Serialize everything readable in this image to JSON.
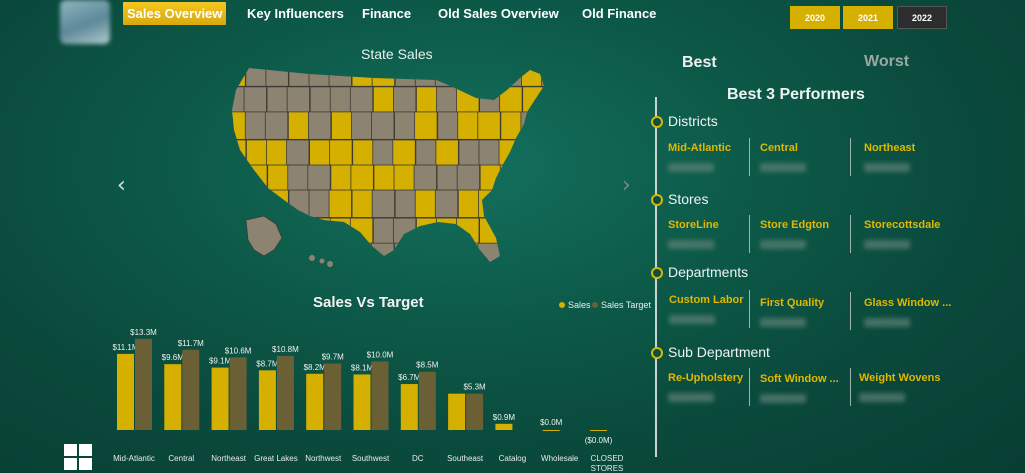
{
  "nav": {
    "tabs": [
      {
        "label": "Sales Overview",
        "active": true
      },
      {
        "label": "Key Influencers",
        "active": false
      },
      {
        "label": "Finance",
        "active": false
      },
      {
        "label": "Old Sales Overview",
        "active": false
      },
      {
        "label": "Old Finance",
        "active": false
      }
    ]
  },
  "years": [
    {
      "label": "2020",
      "selected": true
    },
    {
      "label": "2021",
      "selected": true
    },
    {
      "label": "2022",
      "selected": false
    }
  ],
  "map": {
    "title": "State Sales",
    "highlight_color": "#d6b000",
    "base_color": "#8c8370"
  },
  "chart": {
    "title": "Sales Vs Target",
    "legend": [
      {
        "label": "Sales",
        "color": "#d6b000"
      },
      {
        "label": "Sales Target",
        "color": "#6b5f36"
      }
    ]
  },
  "chart_data": {
    "type": "bar",
    "title": "Sales Vs Target",
    "categories": [
      "Mid-Atlantic",
      "Central",
      "Northeast",
      "Great Lakes",
      "Northwest",
      "Southwest",
      "DC",
      "Southeast",
      "Catalog",
      "Wholesale",
      "CLOSED STORES"
    ],
    "series": [
      {
        "name": "Sales",
        "values": [
          11.1,
          9.6,
          9.1,
          8.7,
          8.2,
          8.1,
          6.7,
          5.3,
          0.9,
          0.0,
          0.0
        ],
        "labels": [
          "$11.1M",
          "$9.6M",
          "$9.1M",
          "$8.7M",
          "$8.2M",
          "$8.1M",
          "$6.7M",
          "",
          "$0.9M",
          "$0.0M",
          "($0.0M)"
        ]
      },
      {
        "name": "Sales Target",
        "values": [
          13.3,
          11.7,
          10.6,
          10.8,
          9.7,
          10.0,
          8.5,
          5.3,
          0,
          0,
          0
        ],
        "labels": [
          "$13.3M",
          "$11.7M",
          "$10.6M",
          "$10.8M",
          "$9.7M",
          "$10.0M",
          "$8.5M",
          "$5.3M",
          "",
          "",
          ""
        ]
      }
    ],
    "ylim": [
      0,
      14
    ],
    "grid": false,
    "legend_position": "top-right"
  },
  "panel": {
    "best_label": "Best",
    "worst_label": "Worst",
    "title": "Best 3 Performers",
    "sections": [
      {
        "label": "Districts",
        "items": [
          "Mid-Atlantic",
          "Central",
          "Northeast"
        ]
      },
      {
        "label": "Stores",
        "items": [
          "StoreLine",
          "Store Edgton",
          "Storecottsdale"
        ]
      },
      {
        "label": "Departments",
        "items": [
          "Custom Labor",
          "First Quality",
          "Glass Window ..."
        ]
      },
      {
        "label": "Sub Department",
        "items": [
          "Re-Upholstery",
          "Soft Window ...",
          "Weight Wovens"
        ]
      }
    ]
  },
  "icons": {
    "prev": "chevron-left-icon",
    "next": "chevron-right-icon",
    "windows": "windows-icon"
  },
  "arrows": {
    "prev": "‹",
    "next": "›"
  }
}
